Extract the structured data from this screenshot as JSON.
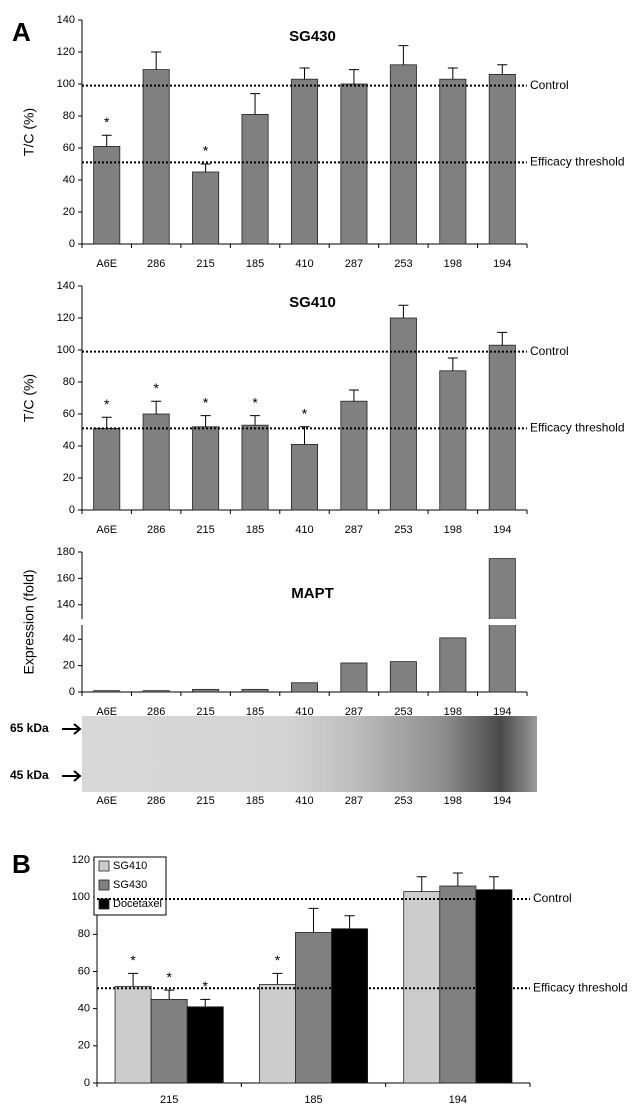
{
  "chart_data": [
    {
      "type": "bar",
      "panel": "A",
      "title": "SG430",
      "ylabel": "T/C (%)",
      "categories": [
        "A6E",
        "286",
        "215",
        "185",
        "410",
        "287",
        "253",
        "198",
        "194"
      ],
      "values": [
        61,
        109,
        45,
        81,
        103,
        100,
        112,
        103,
        106
      ],
      "errors": [
        7,
        11,
        5,
        13,
        7,
        9,
        12,
        7,
        6
      ],
      "significance": [
        "*",
        null,
        "*",
        null,
        null,
        null,
        null,
        null,
        null
      ],
      "color": "#808080",
      "ylim": [
        0,
        140
      ],
      "yticks": [
        0,
        20,
        40,
        60,
        80,
        100,
        120,
        140
      ],
      "reference_lines": [
        {
          "value": 99,
          "label": "Control"
        },
        {
          "value": 51,
          "label": "Efficacy threshold"
        }
      ]
    },
    {
      "type": "bar",
      "title": "SG410",
      "ylabel": "T/C (%)",
      "categories": [
        "A6E",
        "286",
        "215",
        "185",
        "410",
        "287",
        "253",
        "198",
        "194"
      ],
      "values": [
        51,
        60,
        52,
        53,
        41,
        68,
        120,
        87,
        103
      ],
      "errors": [
        7,
        8,
        7,
        6,
        11,
        7,
        8,
        8,
        8
      ],
      "significance": [
        "*",
        "*",
        "*",
        "*",
        "*",
        null,
        null,
        null,
        null
      ],
      "color": "#808080",
      "ylim": [
        0,
        140
      ],
      "yticks": [
        0,
        20,
        40,
        60,
        80,
        100,
        120,
        140
      ],
      "reference_lines": [
        {
          "value": 99,
          "label": "Control"
        },
        {
          "value": 51,
          "label": "Efficacy threshold"
        }
      ]
    },
    {
      "type": "bar",
      "title": "MAPT",
      "ylabel": "Expression (fold)",
      "categories": [
        "A6E",
        "286",
        "215",
        "185",
        "410",
        "287",
        "253",
        "198",
        "194"
      ],
      "values": [
        1,
        1,
        2,
        2,
        7,
        22,
        23,
        41,
        175
      ],
      "color": "#808080",
      "ylim": [
        0,
        180
      ],
      "axis_break": [
        50,
        130
      ],
      "yticks": [
        0,
        20,
        40,
        140,
        160,
        180
      ],
      "blot": {
        "markers": [
          "65 kDa",
          "45 kDa"
        ]
      }
    },
    {
      "type": "grouped_bar",
      "panel": "B",
      "categories": [
        "215",
        "185",
        "194"
      ],
      "series": [
        {
          "name": "SG410",
          "color": "#cccccc",
          "values": [
            52,
            53,
            103
          ],
          "errors": [
            7,
            6,
            8
          ],
          "significance": [
            "*",
            "*",
            null
          ]
        },
        {
          "name": "SG430",
          "color": "#808080",
          "values": [
            45,
            81,
            106
          ],
          "errors": [
            5,
            13,
            7
          ],
          "significance": [
            "*",
            null,
            null
          ]
        },
        {
          "name": "Docetaxel",
          "color": "#000000",
          "values": [
            41,
            83,
            104
          ],
          "errors": [
            4,
            7,
            7
          ],
          "significance": [
            "*",
            null,
            null
          ]
        }
      ],
      "ylim": [
        0,
        120
      ],
      "yticks": [
        0,
        20,
        40,
        60,
        80,
        100,
        120
      ],
      "reference_lines": [
        {
          "value": 99,
          "label": "Control"
        },
        {
          "value": 51,
          "label": "Efficacy threshold"
        }
      ]
    }
  ]
}
